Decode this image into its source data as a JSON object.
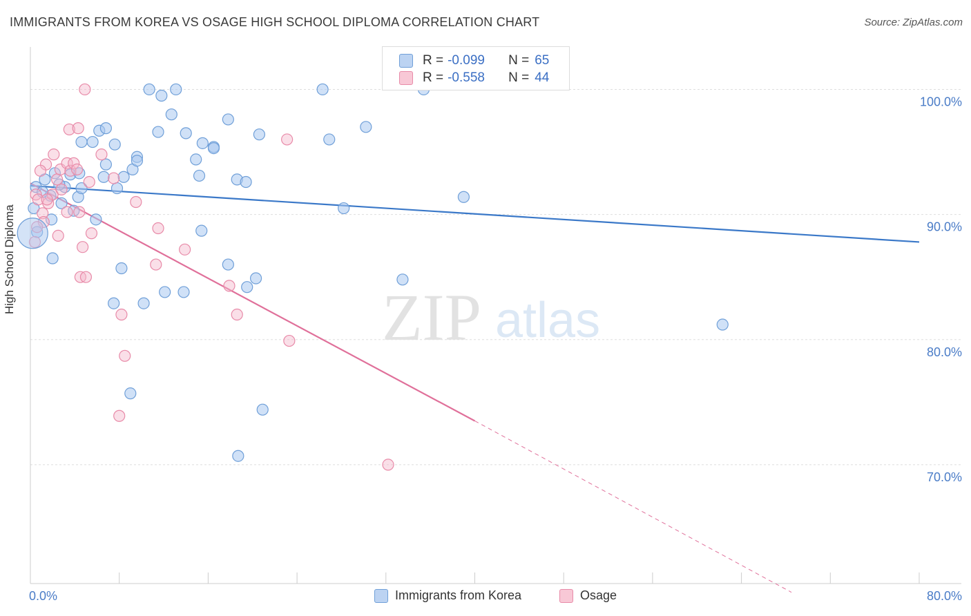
{
  "title": "IMMIGRANTS FROM KOREA VS OSAGE HIGH SCHOOL DIPLOMA CORRELATION CHART",
  "source": "Source: ZipAtlas.com",
  "watermark": {
    "zip": "ZIP",
    "atlas": "atlas"
  },
  "legend": {
    "r_label": "R =",
    "n_label": "N =",
    "rows": [
      {
        "r": "-0.099",
        "n": "65"
      },
      {
        "r": "-0.558",
        "n": "44"
      }
    ]
  },
  "colors": {
    "korea_fill": "#a9c8f0",
    "korea_stroke": "#6f9fd8",
    "korea_line": "#3a78c8",
    "osage_fill": "#f5b8cb",
    "osage_stroke": "#e88aa8",
    "osage_line": "#e0709a",
    "tick_label": "#4a7cc7",
    "grid": "#dddddd"
  },
  "chart_data": {
    "type": "scatter",
    "xlabel": "",
    "ylabel": "High School Diploma",
    "xlim": [
      0,
      80
    ],
    "ylim": [
      60.5,
      104
    ],
    "x_tick_labels": [
      "0.0%",
      "80.0%"
    ],
    "y_ticks": [
      70,
      80,
      90,
      100
    ],
    "y_tick_labels": [
      "70.0%",
      "80.0%",
      "90.0%",
      "100.0%"
    ],
    "grid": true,
    "series": [
      {
        "name": "Immigrants from Korea",
        "trend": {
          "x": [
            0,
            80
          ],
          "y": [
            92.3,
            87.8
          ]
        },
        "points": [
          [
            0.5,
            92.2
          ],
          [
            1.3,
            92.8
          ],
          [
            1.8,
            91.5
          ],
          [
            2.2,
            93.3
          ],
          [
            3.1,
            92.2
          ],
          [
            2.8,
            90.9
          ],
          [
            1.9,
            89.6
          ],
          [
            3.6,
            93.2
          ],
          [
            4.4,
            93.3
          ],
          [
            4.6,
            95.8
          ],
          [
            5.6,
            95.8
          ],
          [
            6.2,
            96.7
          ],
          [
            6.8,
            96.9
          ],
          [
            7.6,
            95.6
          ],
          [
            6.6,
            93.0
          ],
          [
            6.8,
            94.0
          ],
          [
            7.8,
            92.1
          ],
          [
            8.4,
            93.0
          ],
          [
            9.2,
            93.6
          ],
          [
            9.6,
            94.6
          ],
          [
            9.6,
            94.3
          ],
          [
            10.7,
            100.0
          ],
          [
            11.8,
            99.5
          ],
          [
            11.5,
            96.6
          ],
          [
            12.7,
            98.0
          ],
          [
            13.1,
            100.0
          ],
          [
            14.0,
            96.5
          ],
          [
            14.9,
            94.4
          ],
          [
            15.5,
            95.7
          ],
          [
            15.2,
            93.1
          ],
          [
            16.5,
            95.4
          ],
          [
            16.5,
            95.3
          ],
          [
            17.8,
            97.6
          ],
          [
            18.6,
            92.8
          ],
          [
            19.4,
            92.6
          ],
          [
            20.6,
            96.4
          ],
          [
            26.3,
            100.0
          ],
          [
            26.9,
            96.0
          ],
          [
            30.2,
            97.0
          ],
          [
            35.4,
            100.0
          ],
          [
            28.2,
            90.5
          ],
          [
            39.0,
            91.4
          ],
          [
            3.9,
            90.3
          ],
          [
            5.9,
            89.6
          ],
          [
            4.3,
            91.4
          ],
          [
            2.0,
            86.5
          ],
          [
            8.2,
            85.7
          ],
          [
            15.4,
            88.7
          ],
          [
            17.8,
            86.0
          ],
          [
            19.5,
            84.2
          ],
          [
            20.3,
            84.9
          ],
          [
            12.1,
            83.8
          ],
          [
            13.8,
            83.8
          ],
          [
            7.5,
            82.9
          ],
          [
            10.2,
            82.9
          ],
          [
            33.5,
            84.8
          ],
          [
            62.3,
            81.2
          ],
          [
            9.0,
            75.7
          ],
          [
            20.9,
            74.4
          ],
          [
            18.7,
            70.7
          ],
          [
            0.3,
            90.5
          ],
          [
            0.6,
            88.6
          ],
          [
            1.1,
            91.8
          ],
          [
            2.6,
            92.4
          ],
          [
            4.6,
            92.1
          ]
        ]
      },
      {
        "name": "Osage",
        "trend": {
          "x": [
            0,
            40
          ],
          "y": [
            92.5,
            73.5
          ]
        },
        "trend_extension": {
          "x": [
            40,
            68.5
          ],
          "y": [
            73.5,
            59.8
          ]
        },
        "points": [
          [
            0.5,
            91.6
          ],
          [
            0.7,
            91.2
          ],
          [
            1.1,
            90.1
          ],
          [
            1.6,
            90.9
          ],
          [
            2.0,
            91.6
          ],
          [
            2.4,
            92.8
          ],
          [
            1.4,
            94.0
          ],
          [
            2.1,
            94.8
          ],
          [
            2.7,
            93.6
          ],
          [
            3.3,
            94.1
          ],
          [
            3.6,
            93.5
          ],
          [
            3.9,
            94.1
          ],
          [
            4.2,
            93.6
          ],
          [
            3.5,
            96.8
          ],
          [
            4.3,
            96.9
          ],
          [
            4.9,
            100.0
          ],
          [
            6.4,
            94.8
          ],
          [
            5.3,
            92.6
          ],
          [
            7.5,
            92.9
          ],
          [
            9.5,
            91.0
          ],
          [
            3.3,
            90.2
          ],
          [
            4.4,
            90.2
          ],
          [
            5.5,
            88.5
          ],
          [
            4.7,
            87.4
          ],
          [
            2.5,
            88.3
          ],
          [
            1.2,
            89.4
          ],
          [
            0.6,
            89.0
          ],
          [
            11.5,
            88.9
          ],
          [
            11.3,
            86.0
          ],
          [
            13.9,
            87.2
          ],
          [
            4.5,
            85.0
          ],
          [
            5.0,
            85.0
          ],
          [
            8.2,
            82.0
          ],
          [
            17.9,
            84.3
          ],
          [
            18.6,
            82.0
          ],
          [
            23.1,
            96.0
          ],
          [
            23.3,
            79.9
          ],
          [
            8.5,
            78.7
          ],
          [
            8.0,
            73.9
          ],
          [
            32.2,
            70.0
          ],
          [
            2.8,
            92.0
          ],
          [
            1.5,
            91.2
          ],
          [
            0.9,
            93.5
          ],
          [
            0.4,
            87.8
          ]
        ]
      }
    ]
  },
  "bottom_legend": [
    "Immigrants from Korea",
    "Osage"
  ]
}
